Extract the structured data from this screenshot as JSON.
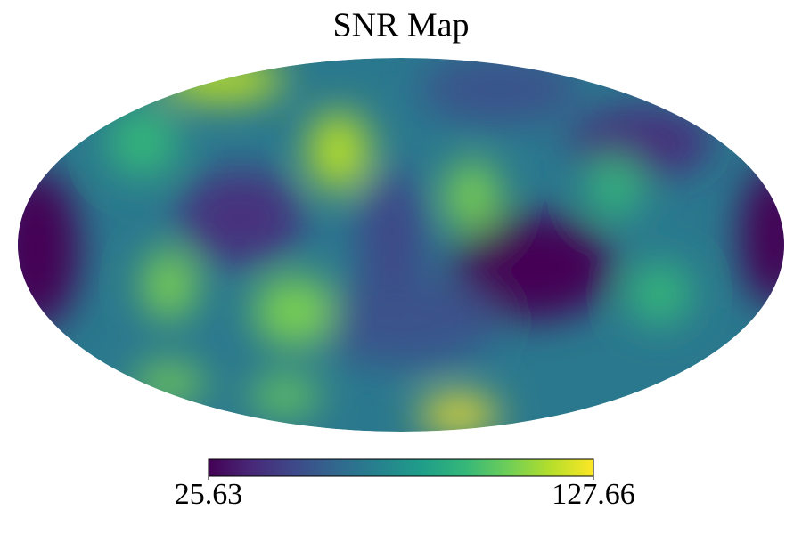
{
  "chart_data": {
    "type": "mollweide",
    "title": "SNR Map",
    "colormap": "viridis",
    "clim": [
      25.63,
      127.66
    ],
    "cticks": [
      25.63,
      127.66
    ]
  }
}
